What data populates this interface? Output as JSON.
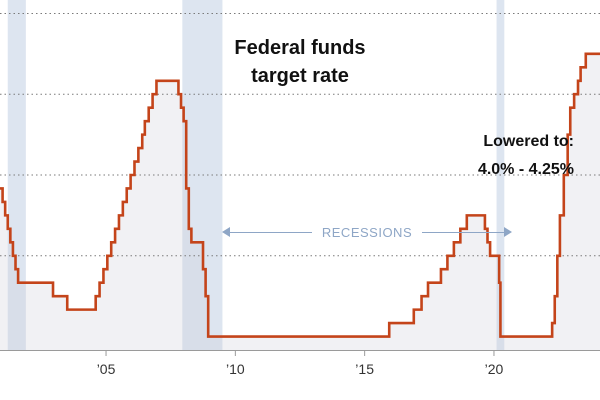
{
  "chart_data": {
    "type": "line",
    "step": true,
    "title": "Federal funds target rate",
    "title_lines": [
      "Federal funds",
      "target rate"
    ],
    "annotation": {
      "line1": "Lowered to:",
      "line2": "4.0% - 4.25%",
      "value_range": [
        4.0,
        4.25
      ]
    },
    "xlabel": "",
    "ylabel": "",
    "xlim": [
      2000.9,
      2024.1
    ],
    "ylim": [
      0,
      6.5
    ],
    "gridlines_y": [
      1.75,
      3.25,
      4.75,
      6.25
    ],
    "x_ticks": [
      {
        "value": 2005,
        "label": "’05"
      },
      {
        "value": 2010,
        "label": "’10"
      },
      {
        "value": 2015,
        "label": "’15"
      },
      {
        "value": 2020,
        "label": "’20"
      }
    ],
    "recessions": [
      {
        "start": 2001.2,
        "end": 2001.9
      },
      {
        "start": 2007.95,
        "end": 2009.5
      },
      {
        "start": 2020.1,
        "end": 2020.4
      }
    ],
    "recessions_label": "RECESSIONS",
    "series": [
      {
        "name": "Federal funds target rate",
        "color": "#c4441a",
        "points": [
          [
            2000.9,
            3.0
          ],
          [
            2001.0,
            2.75
          ],
          [
            2001.1,
            2.5
          ],
          [
            2001.2,
            2.25
          ],
          [
            2001.3,
            2.0
          ],
          [
            2001.4,
            1.75
          ],
          [
            2001.5,
            1.5
          ],
          [
            2001.6,
            1.25
          ],
          [
            2001.7,
            1.25
          ],
          [
            2001.9,
            1.25
          ],
          [
            2002.0,
            1.25
          ],
          [
            2002.9,
            1.25
          ],
          [
            2002.95,
            1.0
          ],
          [
            2003.5,
            0.75
          ],
          [
            2004.5,
            0.75
          ],
          [
            2004.6,
            1.0
          ],
          [
            2004.75,
            1.25
          ],
          [
            2004.9,
            1.5
          ],
          [
            2005.05,
            1.75
          ],
          [
            2005.2,
            2.0
          ],
          [
            2005.35,
            2.25
          ],
          [
            2005.5,
            2.5
          ],
          [
            2005.65,
            2.75
          ],
          [
            2005.8,
            3.0
          ],
          [
            2005.95,
            3.25
          ],
          [
            2006.1,
            3.5
          ],
          [
            2006.25,
            3.75
          ],
          [
            2006.4,
            4.0
          ],
          [
            2006.5,
            4.25
          ],
          [
            2006.65,
            4.5
          ],
          [
            2006.8,
            4.75
          ],
          [
            2006.95,
            5.0
          ],
          [
            2007.75,
            5.0
          ],
          [
            2007.8,
            4.75
          ],
          [
            2007.9,
            4.5
          ],
          [
            2008.0,
            4.25
          ],
          [
            2008.1,
            3.0
          ],
          [
            2008.2,
            2.25
          ],
          [
            2008.3,
            2.0
          ],
          [
            2008.75,
            1.5
          ],
          [
            2008.85,
            1.0
          ],
          [
            2008.95,
            0.25
          ],
          [
            2015.9,
            0.25
          ],
          [
            2015.95,
            0.5
          ],
          [
            2016.9,
            0.75
          ],
          [
            2017.2,
            1.0
          ],
          [
            2017.45,
            1.25
          ],
          [
            2017.95,
            1.5
          ],
          [
            2018.2,
            1.75
          ],
          [
            2018.45,
            2.0
          ],
          [
            2018.7,
            2.25
          ],
          [
            2018.95,
            2.5
          ],
          [
            2019.55,
            2.5
          ],
          [
            2019.65,
            2.25
          ],
          [
            2019.75,
            2.0
          ],
          [
            2019.85,
            1.75
          ],
          [
            2020.15,
            1.75
          ],
          [
            2020.2,
            1.25
          ],
          [
            2020.25,
            0.25
          ],
          [
            2022.2,
            0.25
          ],
          [
            2022.25,
            0.5
          ],
          [
            2022.35,
            1.0
          ],
          [
            2022.45,
            1.75
          ],
          [
            2022.55,
            2.5
          ],
          [
            2022.7,
            3.25
          ],
          [
            2022.85,
            4.0
          ],
          [
            2022.95,
            4.5
          ],
          [
            2023.1,
            4.75
          ],
          [
            2023.25,
            5.0
          ],
          [
            2023.35,
            5.25
          ],
          [
            2023.55,
            5.5
          ],
          [
            2024.1,
            5.5
          ]
        ]
      }
    ]
  }
}
